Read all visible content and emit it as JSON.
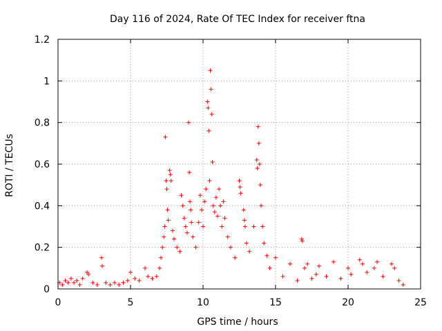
{
  "chart_data": {
    "type": "scatter",
    "title": "Day 116 of 2024, Rate Of TEC Index for receiver ftna",
    "xlabel": "GPS time / hours",
    "ylabel": "ROTI / TECUs",
    "xlim": [
      0,
      25
    ],
    "ylim": [
      0,
      1.2
    ],
    "xticks": [
      "0",
      "5",
      "10",
      "15",
      "20",
      "25"
    ],
    "yticks": [
      "0",
      "0.2",
      "0.4",
      "0.6",
      "0.8",
      "1",
      "1.2"
    ],
    "grid": true,
    "marker": "plus",
    "color": "#ff0000",
    "series": [
      {
        "points": [
          [
            0.1,
            0.03
          ],
          [
            0.3,
            0.02
          ],
          [
            0.5,
            0.04
          ],
          [
            0.7,
            0.03
          ],
          [
            0.9,
            0.05
          ],
          [
            1.1,
            0.03
          ],
          [
            1.3,
            0.04
          ],
          [
            1.5,
            0.02
          ],
          [
            1.7,
            0.05
          ],
          [
            2.0,
            0.08
          ],
          [
            2.1,
            0.07
          ],
          [
            2.4,
            0.03
          ],
          [
            2.7,
            0.02
          ],
          [
            3.0,
            0.15
          ],
          [
            3.05,
            0.11
          ],
          [
            3.3,
            0.03
          ],
          [
            3.6,
            0.02
          ],
          [
            3.9,
            0.03
          ],
          [
            4.2,
            0.02
          ],
          [
            4.5,
            0.03
          ],
          [
            4.8,
            0.04
          ],
          [
            5.0,
            0.08
          ],
          [
            5.3,
            0.05
          ],
          [
            5.6,
            0.04
          ],
          [
            6.0,
            0.1
          ],
          [
            6.2,
            0.06
          ],
          [
            6.5,
            0.05
          ],
          [
            6.8,
            0.06
          ],
          [
            7.0,
            0.1
          ],
          [
            7.1,
            0.15
          ],
          [
            7.2,
            0.2
          ],
          [
            7.3,
            0.25
          ],
          [
            7.35,
            0.3
          ],
          [
            7.4,
            0.73
          ],
          [
            7.45,
            0.52
          ],
          [
            7.5,
            0.48
          ],
          [
            7.55,
            0.38
          ],
          [
            7.6,
            0.33
          ],
          [
            7.7,
            0.57
          ],
          [
            7.75,
            0.55
          ],
          [
            7.8,
            0.52
          ],
          [
            7.9,
            0.28
          ],
          [
            8.0,
            0.24
          ],
          [
            8.2,
            0.2
          ],
          [
            8.4,
            0.18
          ],
          [
            8.5,
            0.45
          ],
          [
            8.6,
            0.4
          ],
          [
            8.7,
            0.34
          ],
          [
            8.8,
            0.3
          ],
          [
            8.9,
            0.27
          ],
          [
            9.0,
            0.8
          ],
          [
            9.05,
            0.56
          ],
          [
            9.1,
            0.42
          ],
          [
            9.15,
            0.38
          ],
          [
            9.2,
            0.32
          ],
          [
            9.3,
            0.25
          ],
          [
            9.5,
            0.2
          ],
          [
            9.7,
            0.32
          ],
          [
            9.8,
            0.45
          ],
          [
            9.9,
            0.38
          ],
          [
            10.0,
            0.3
          ],
          [
            10.1,
            0.42
          ],
          [
            10.2,
            0.48
          ],
          [
            10.3,
            0.9
          ],
          [
            10.35,
            0.87
          ],
          [
            10.4,
            0.76
          ],
          [
            10.45,
            0.52
          ],
          [
            10.5,
            1.05
          ],
          [
            10.55,
            0.96
          ],
          [
            10.6,
            0.84
          ],
          [
            10.65,
            0.61
          ],
          [
            10.7,
            0.4
          ],
          [
            10.8,
            0.37
          ],
          [
            10.9,
            0.44
          ],
          [
            11.0,
            0.35
          ],
          [
            11.1,
            0.48
          ],
          [
            11.2,
            0.4
          ],
          [
            11.3,
            0.3
          ],
          [
            11.4,
            0.42
          ],
          [
            11.5,
            0.34
          ],
          [
            11.7,
            0.25
          ],
          [
            11.9,
            0.2
          ],
          [
            12.2,
            0.15
          ],
          [
            12.5,
            0.52
          ],
          [
            12.55,
            0.49
          ],
          [
            12.6,
            0.46
          ],
          [
            12.8,
            0.38
          ],
          [
            12.85,
            0.33
          ],
          [
            12.9,
            0.3
          ],
          [
            13.0,
            0.22
          ],
          [
            13.2,
            0.18
          ],
          [
            13.5,
            0.3
          ],
          [
            13.7,
            0.62
          ],
          [
            13.75,
            0.58
          ],
          [
            13.8,
            0.78
          ],
          [
            13.85,
            0.7
          ],
          [
            13.9,
            0.6
          ],
          [
            13.95,
            0.5
          ],
          [
            14.0,
            0.4
          ],
          [
            14.1,
            0.3
          ],
          [
            14.2,
            0.22
          ],
          [
            14.4,
            0.16
          ],
          [
            14.6,
            0.1
          ],
          [
            15.0,
            0.15
          ],
          [
            15.5,
            0.06
          ],
          [
            16.0,
            0.12
          ],
          [
            16.5,
            0.04
          ],
          [
            16.8,
            0.24
          ],
          [
            16.85,
            0.23
          ],
          [
            17.0,
            0.1
          ],
          [
            17.2,
            0.12
          ],
          [
            17.5,
            0.05
          ],
          [
            17.8,
            0.07
          ],
          [
            18.0,
            0.11
          ],
          [
            18.5,
            0.06
          ],
          [
            19.0,
            0.13
          ],
          [
            19.5,
            0.05
          ],
          [
            20.0,
            0.1
          ],
          [
            20.2,
            0.07
          ],
          [
            20.8,
            0.14
          ],
          [
            21.0,
            0.12
          ],
          [
            21.3,
            0.08
          ],
          [
            21.8,
            0.1
          ],
          [
            22.0,
            0.13
          ],
          [
            22.4,
            0.06
          ],
          [
            23.0,
            0.12
          ],
          [
            23.2,
            0.1
          ],
          [
            23.5,
            0.04
          ],
          [
            23.8,
            0.02
          ]
        ]
      }
    ]
  }
}
